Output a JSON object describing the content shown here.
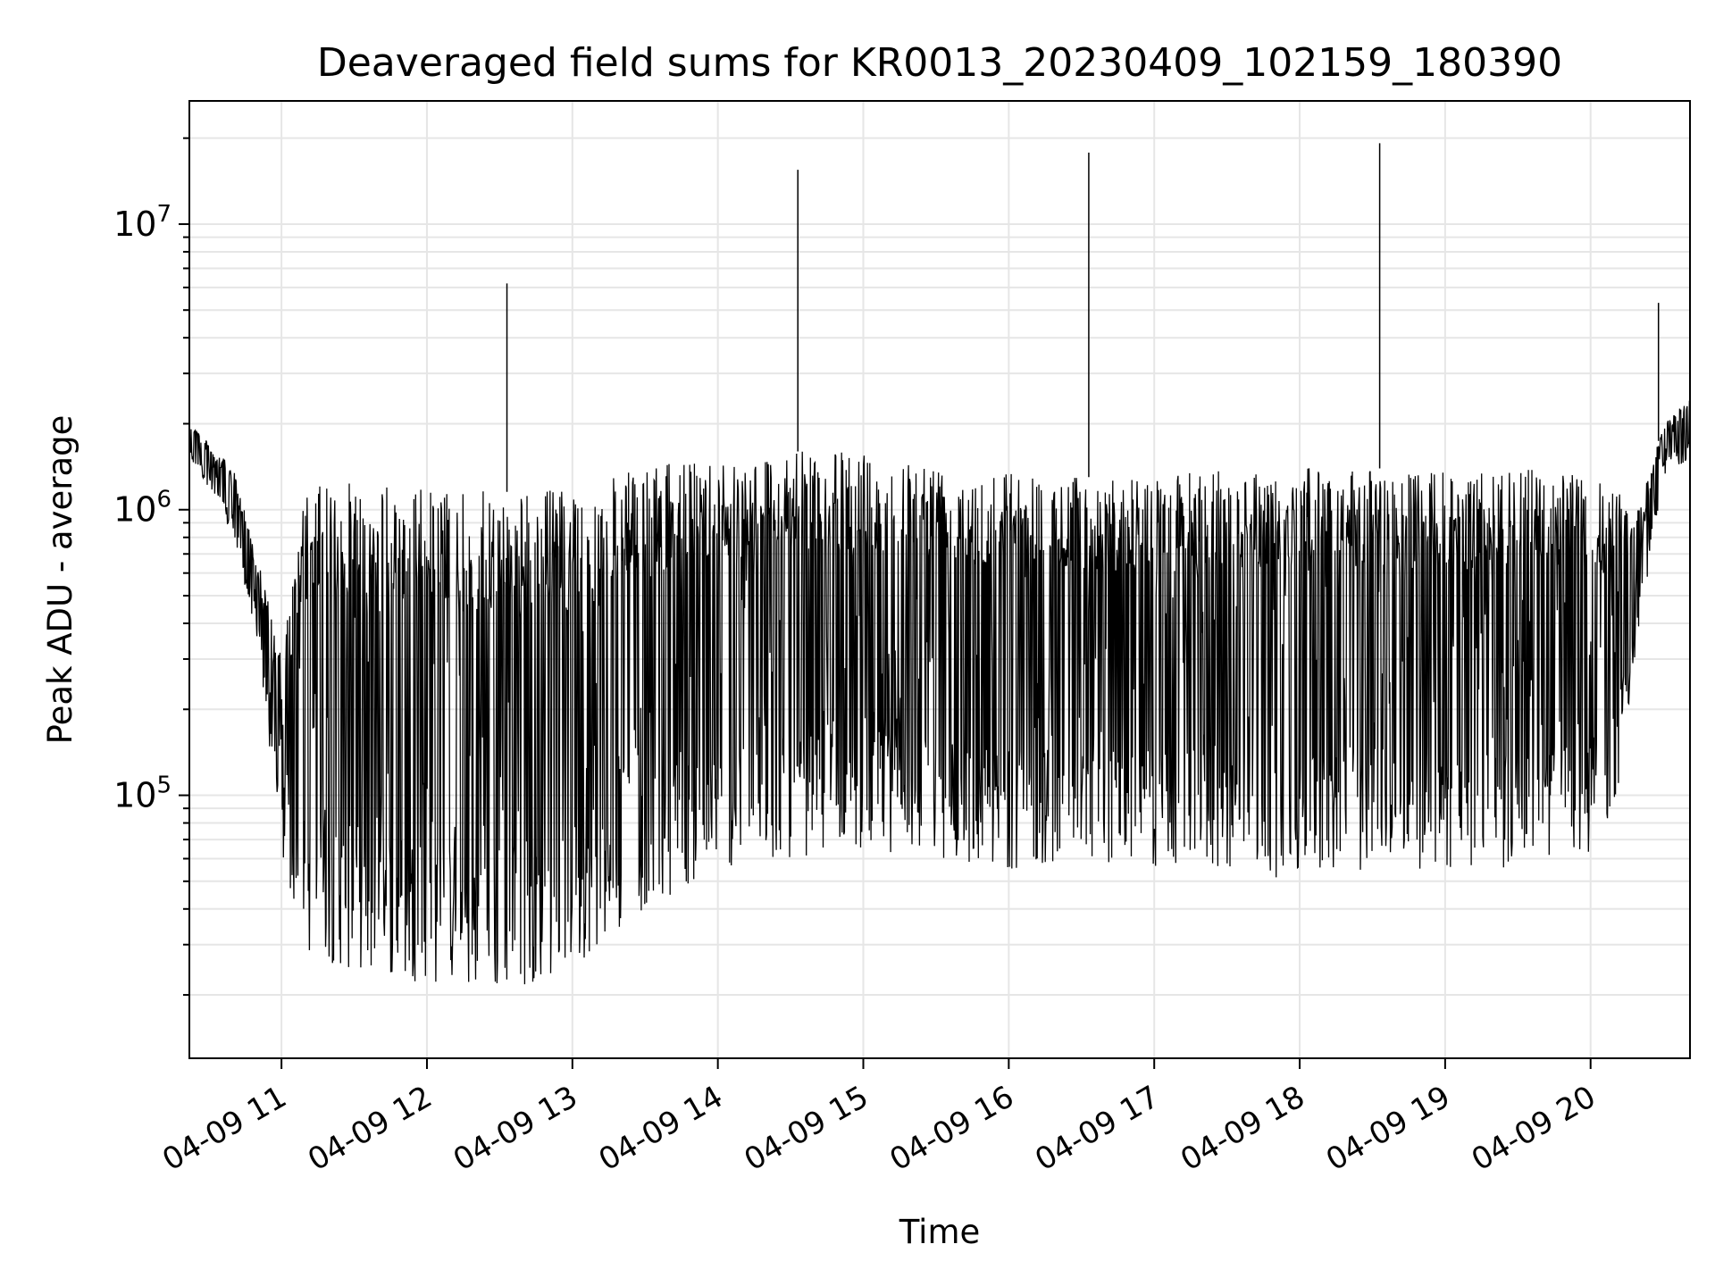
{
  "chart_data": {
    "type": "line",
    "title": "Deaveraged field sums for KR0013_20230409_102159_180390",
    "xlabel": "Time",
    "ylabel": "Peak ADU - average",
    "yscale": "log",
    "ylim": [
      12000,
      27000000
    ],
    "xlim": [
      "2023-04-09 10:22",
      "2023-04-09 20:41"
    ],
    "x_ticks": [
      {
        "label": "04-09 11",
        "time": "2023-04-09 11:00"
      },
      {
        "label": "04-09 12",
        "time": "2023-04-09 12:00"
      },
      {
        "label": "04-09 13",
        "time": "2023-04-09 13:00"
      },
      {
        "label": "04-09 14",
        "time": "2023-04-09 14:00"
      },
      {
        "label": "04-09 15",
        "time": "2023-04-09 15:00"
      },
      {
        "label": "04-09 16",
        "time": "2023-04-09 16:00"
      },
      {
        "label": "04-09 17",
        "time": "2023-04-09 17:00"
      },
      {
        "label": "04-09 18",
        "time": "2023-04-09 18:00"
      },
      {
        "label": "04-09 19",
        "time": "2023-04-09 19:00"
      },
      {
        "label": "04-09 20",
        "time": "2023-04-09 20:00"
      }
    ],
    "y_ticks": [
      {
        "base": "10",
        "exp": "5",
        "value": 100000
      },
      {
        "base": "10",
        "exp": "6",
        "value": 1000000
      },
      {
        "base": "10",
        "exp": "7",
        "value": 10000000
      }
    ],
    "grid": true,
    "line_color": "#000000",
    "grid_color": "#e6e6e6",
    "envelope": {
      "x": [
        "2023-04-09 10:22",
        "2023-04-09 10:30",
        "2023-04-09 10:40",
        "2023-04-09 10:50",
        "2023-04-09 11:00",
        "2023-04-09 11:10",
        "2023-04-09 11:30",
        "2023-04-09 12:00",
        "2023-04-09 12:30",
        "2023-04-09 13:00",
        "2023-04-09 13:30",
        "2023-04-09 14:00",
        "2023-04-09 14:30",
        "2023-04-09 15:00",
        "2023-04-09 15:30",
        "2023-04-09 16:00",
        "2023-04-09 16:30",
        "2023-04-09 17:00",
        "2023-04-09 17:30",
        "2023-04-09 18:00",
        "2023-04-09 18:30",
        "2023-04-09 19:00",
        "2023-04-09 19:30",
        "2023-04-09 20:00",
        "2023-04-09 20:10",
        "2023-04-09 20:20",
        "2023-04-09 20:30",
        "2023-04-09 20:41"
      ],
      "upper": [
        2100000,
        1700000,
        1400000,
        700000,
        300000,
        1200000,
        1250000,
        1200000,
        1150000,
        1200000,
        1400000,
        1550000,
        1600000,
        1600000,
        1500000,
        1400000,
        1300000,
        1300000,
        1400000,
        1400000,
        1400000,
        1350000,
        1400000,
        1300000,
        1200000,
        1000000,
        2000000,
        2500000
      ],
      "lower": [
        1500000,
        1200000,
        800000,
        350000,
        60000,
        28000,
        24000,
        22000,
        20000,
        25000,
        40000,
        55000,
        60000,
        65000,
        60000,
        55000,
        60000,
        55000,
        55000,
        50000,
        55000,
        55000,
        55000,
        60000,
        90000,
        350000,
        1300000,
        1500000
      ]
    },
    "spikes": [
      {
        "x": "2023-04-09 12:33",
        "y": 6200000
      },
      {
        "x": "2023-04-09 14:33",
        "y": 15500000
      },
      {
        "x": "2023-04-09 16:33",
        "y": 17800000
      },
      {
        "x": "2023-04-09 18:33",
        "y": 19200000
      },
      {
        "x": "2023-04-09 20:28",
        "y": 5300000
      }
    ]
  }
}
